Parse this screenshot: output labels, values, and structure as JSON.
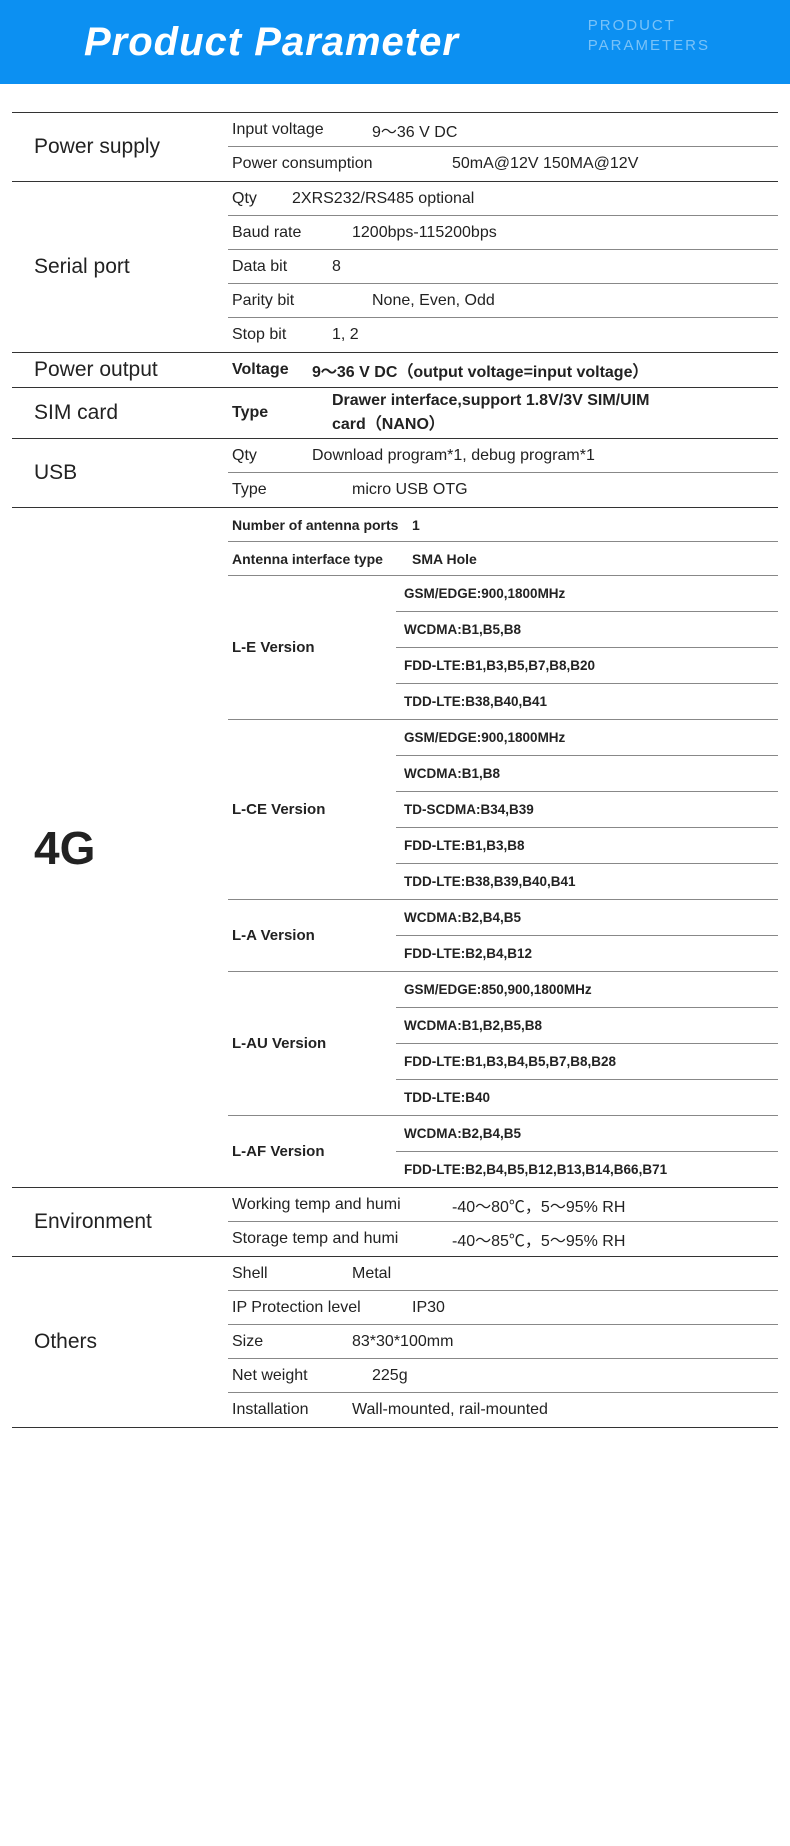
{
  "banner": {
    "title": "Product Parameter",
    "sub1": "PRODUCT",
    "sub2": "PARAMETERS"
  },
  "power_supply": {
    "label": "Power supply",
    "rows": [
      {
        "k": "Input voltage",
        "v": "9～36 V DC"
      },
      {
        "k": "Power consumption",
        "v": "50mA@12V  150MA@12V"
      }
    ]
  },
  "serial_port": {
    "label": "Serial port",
    "rows": [
      {
        "k": "Qty",
        "v": "2XRS232/RS485 optional"
      },
      {
        "k": "Baud rate",
        "v": "1200bps-115200bps"
      },
      {
        "k": "Data bit",
        "v": "8"
      },
      {
        "k": "Parity bit",
        "v": "None, Even, Odd"
      },
      {
        "k": "Stop bit",
        "v": "1, 2"
      }
    ]
  },
  "power_output": {
    "label": "Power output",
    "row": {
      "k": "Voltage",
      "v": "9～36 V DC（output voltage=input voltage）"
    }
  },
  "sim": {
    "label": "SIM card",
    "row": {
      "k": "Type",
      "v": "Drawer interface,support 1.8V/3V SIM/UIM card（NANO）"
    }
  },
  "usb": {
    "label": "USB",
    "rows": [
      {
        "k": "Qty",
        "v": "Download program*1, debug program*1"
      },
      {
        "k": "Type",
        "v": "micro USB OTG"
      }
    ]
  },
  "fourg": {
    "label": "4G",
    "antenna_ports": {
      "k": "Number of antenna ports",
      "v": "1"
    },
    "antenna_iface": {
      "k": "Antenna interface type",
      "v": "SMA Hole"
    },
    "versions": [
      {
        "name": "L-E Version",
        "bands": [
          "GSM/EDGE:900,1800MHz",
          "WCDMA:B1,B5,B8",
          "FDD-LTE:B1,B3,B5,B7,B8,B20",
          "TDD-LTE:B38,B40,B41"
        ]
      },
      {
        "name": "L-CE Version",
        "bands": [
          "GSM/EDGE:900,1800MHz",
          "WCDMA:B1,B8",
          "TD-SCDMA:B34,B39",
          "FDD-LTE:B1,B3,B8",
          "TDD-LTE:B38,B39,B40,B41"
        ]
      },
      {
        "name": "L-A Version",
        "bands": [
          "WCDMA:B2,B4,B5",
          "FDD-LTE:B2,B4,B12"
        ]
      },
      {
        "name": "L-AU Version",
        "bands": [
          "GSM/EDGE:850,900,1800MHz",
          "WCDMA:B1,B2,B5,B8",
          "FDD-LTE:B1,B3,B4,B5,B7,B8,B28",
          "TDD-LTE:B40"
        ]
      },
      {
        "name": "L-AF Version",
        "bands": [
          "WCDMA:B2,B4,B5",
          "FDD-LTE:B2,B4,B5,B12,B13,B14,B66,B71"
        ]
      }
    ]
  },
  "env": {
    "label": "Environment",
    "rows": [
      {
        "k": "Working temp and humi",
        "v": "-40～80℃，5～95% RH"
      },
      {
        "k": "Storage temp and humi",
        "v": "-40～85℃，5～95% RH"
      }
    ]
  },
  "others": {
    "label": "Others",
    "rows": [
      {
        "k": "Shell",
        "v": "Metal"
      },
      {
        "k": "IP Protection level",
        "v": "IP30"
      },
      {
        "k": "Size",
        "v": "83*30*100mm"
      },
      {
        "k": "Net weight",
        "v": "225g"
      },
      {
        "k": "Installation",
        "v": "Wall-mounted, rail-mounted"
      }
    ]
  }
}
